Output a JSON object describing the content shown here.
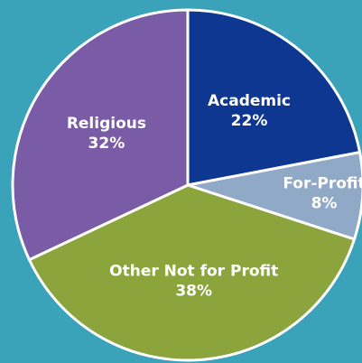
{
  "chart_data": {
    "type": "pie",
    "categories": [
      "Academic",
      "For-Profit",
      "Other Not for Profit",
      "Religious"
    ],
    "values": [
      22,
      8,
      38,
      32
    ],
    "value_labels": [
      "22%",
      "8%",
      "38%",
      "32%"
    ],
    "colors": [
      "#0d3791",
      "#8fa9c7",
      "#8ba53c",
      "#7a5ba5"
    ],
    "start_angle": 0,
    "direction": "clockwise"
  }
}
